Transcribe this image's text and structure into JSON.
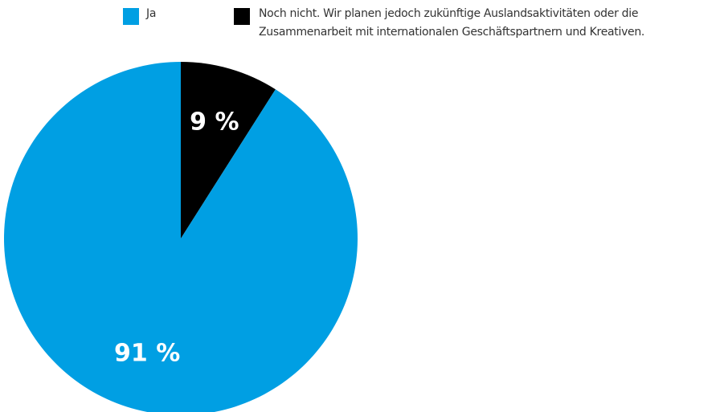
{
  "chart_data": {
    "type": "pie",
    "categories": [
      "Ja",
      "Noch nicht. Wir planen jedoch zukünftige Auslandsaktivitäten oder die Zusammenarbeit mit internationalen Geschäftspartnern und Kreativen."
    ],
    "values": [
      91,
      9
    ],
    "value_labels": [
      "91 %",
      "9 %"
    ],
    "colors": [
      "#009fe3",
      "#000000"
    ],
    "legend": "top"
  }
}
